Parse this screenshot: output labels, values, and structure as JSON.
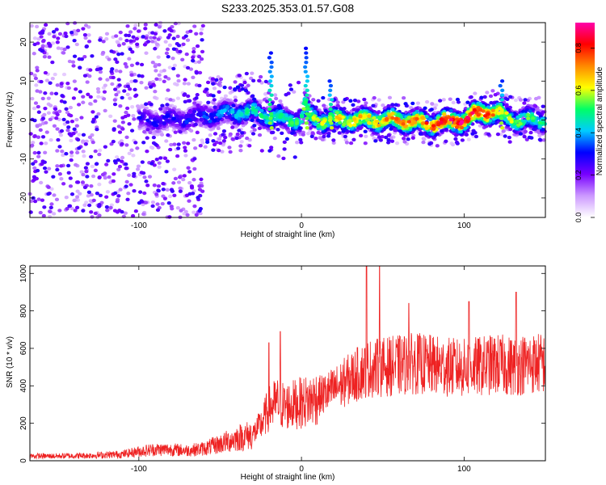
{
  "figure": {
    "title": "S233.2025.353.01.57.G08"
  },
  "chart_data": [
    {
      "type": "heatmap",
      "xlabel": "Height of straight line (km)",
      "ylabel": "Frequency (Hz)",
      "xlim": [
        -167,
        150
      ],
      "ylim": [
        -25,
        25
      ],
      "x_ticks": [
        -100,
        0,
        100
      ],
      "x_tick_labels": [
        "-100",
        "0",
        "100"
      ],
      "y_ticks": [
        -20,
        -10,
        0,
        10,
        20
      ],
      "y_tick_labels": [
        "-20",
        "-10",
        "0",
        "10",
        "20"
      ],
      "colorbar": {
        "label": "Normalized spectral amplitude",
        "range": [
          0.0,
          0.92
        ],
        "ticks": [
          0.0,
          0.2,
          0.4,
          0.6,
          0.8
        ],
        "tick_labels": [
          "0.0",
          "0.2",
          "0.4",
          "0.6",
          "0.8"
        ],
        "colors": [
          "#ffffff",
          "#cc99ff",
          "#7700ff",
          "#0000ff",
          "#00ccff",
          "#00ff66",
          "#ffff00",
          "#ff8800",
          "#ff0000",
          "#ff00aa"
        ]
      },
      "ridge": {
        "description_x": [
          -100,
          -80,
          -60,
          -40,
          -30,
          -20,
          -10,
          0,
          2,
          5,
          10,
          20,
          40,
          60,
          80,
          100,
          110,
          120,
          130,
          150
        ],
        "frequency": [
          0,
          0,
          1,
          2,
          2,
          1,
          0,
          0,
          4,
          1,
          0,
          0,
          0,
          0,
          -1,
          0,
          2,
          2,
          0,
          0
        ],
        "peak_amplitude": [
          0.3,
          0.3,
          0.35,
          0.45,
          0.5,
          0.5,
          0.5,
          0.55,
          0.6,
          0.6,
          0.6,
          0.65,
          0.7,
          0.75,
          0.8,
          0.9,
          0.85,
          0.75,
          0.6,
          0.5
        ]
      },
      "spikes": [
        {
          "x": -19,
          "freq_top": 18
        },
        {
          "x": 3,
          "freq_top": 19
        },
        {
          "x": 18,
          "freq_top": 11
        },
        {
          "x": 123,
          "freq_top": 11
        }
      ]
    },
    {
      "type": "line",
      "xlabel": "Height of straight line (km)",
      "ylabel": "SNR (10 * v/v)",
      "xlim": [
        -167,
        150
      ],
      "ylim": [
        0,
        1040
      ],
      "x_ticks": [
        -100,
        0,
        100
      ],
      "x_tick_labels": [
        "-100",
        "0",
        "100"
      ],
      "y_ticks": [
        0,
        200,
        400,
        600,
        800,
        1000
      ],
      "y_tick_labels": [
        "0",
        "200",
        "400",
        "600",
        "800",
        "1000"
      ],
      "series": [
        {
          "color": "#ee2222",
          "x": [
            -167,
            -150,
            -130,
            -110,
            -100,
            -90,
            -80,
            -70,
            -60,
            -50,
            -40,
            -30,
            -25,
            -20,
            -15,
            -10,
            -5,
            0,
            5,
            10,
            20,
            30,
            40,
            50,
            60,
            70,
            80,
            90,
            100,
            110,
            120,
            130,
            140,
            150
          ],
          "y": [
            25,
            25,
            28,
            35,
            50,
            60,
            60,
            55,
            65,
            90,
            120,
            140,
            190,
            280,
            310,
            290,
            300,
            310,
            320,
            340,
            380,
            440,
            490,
            500,
            510,
            520,
            510,
            500,
            495,
            505,
            515,
            505,
            520,
            520
          ],
          "peaks": [
            {
              "x": -20,
              "y": 630
            },
            {
              "x": -13,
              "y": 690
            },
            {
              "x": 40,
              "y": 1040
            },
            {
              "x": 48,
              "y": 1040
            },
            {
              "x": 66,
              "y": 840
            },
            {
              "x": 103,
              "y": 850
            },
            {
              "x": 132,
              "y": 900
            }
          ]
        }
      ]
    }
  ]
}
